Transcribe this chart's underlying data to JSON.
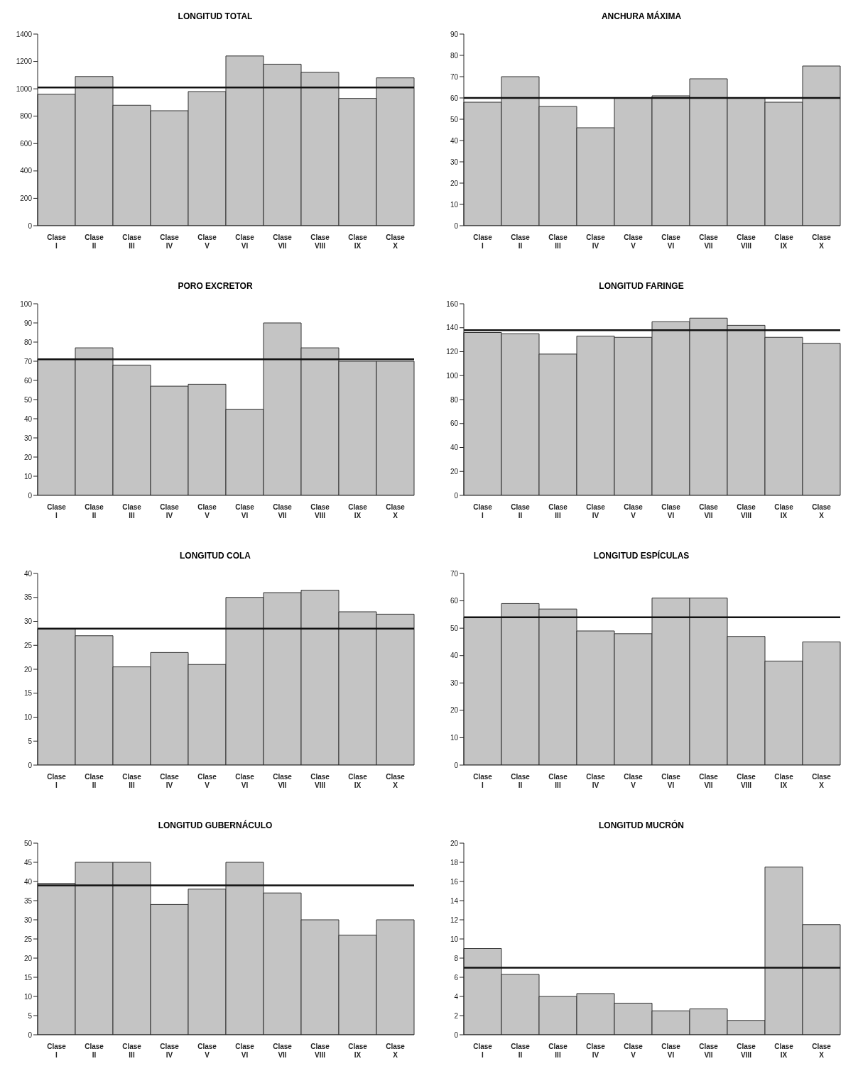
{
  "chart_data": [
    {
      "type": "bar",
      "title": "LONGITUD TOTAL",
      "categories": [
        "Clase I",
        "Clase II",
        "Clase III",
        "Clase IV",
        "Clase V",
        "Clase VI",
        "Clase VII",
        "Clase VIII",
        "Clase IX",
        "Clase X"
      ],
      "values": [
        960,
        1090,
        880,
        840,
        980,
        1240,
        1180,
        1120,
        930,
        1080
      ],
      "color": "#c4c4c4",
      "ylim": [
        0,
        1400
      ],
      "yticks": [
        0,
        200,
        400,
        600,
        800,
        1000,
        1200,
        1400
      ],
      "ref_lines": [
        {
          "axis": "y",
          "value": 1010,
          "label": null,
          "color": "#111111"
        }
      ]
    },
    {
      "type": "bar",
      "title": "ANCHURA MÁXIMA",
      "categories": [
        "Clase I",
        "Clase II",
        "Clase III",
        "Clase IV",
        "Clase V",
        "Clase VI",
        "Clase VII",
        "Clase VIII",
        "Clase IX",
        "Clase X"
      ],
      "values": [
        58,
        70,
        56,
        46,
        60,
        61,
        69,
        60,
        58,
        75
      ],
      "color": "#c4c4c4",
      "ylim": [
        0,
        90
      ],
      "yticks": [
        0,
        10,
        20,
        30,
        40,
        50,
        60,
        70,
        80,
        90
      ],
      "ref_lines": [
        {
          "axis": "y",
          "value": 60,
          "label": null,
          "color": "#111111"
        }
      ]
    },
    {
      "type": "bar",
      "title": "PORO EXCRETOR",
      "categories": [
        "Clase I",
        "Clase II",
        "Clase III",
        "Clase IV",
        "Clase V",
        "Clase VI",
        "Clase VII",
        "Clase VIII",
        "Clase IX",
        "Clase X"
      ],
      "values": [
        71,
        77,
        68,
        57,
        58,
        45,
        90,
        77,
        70,
        70
      ],
      "color": "#c4c4c4",
      "ylim": [
        0,
        100
      ],
      "yticks": [
        0,
        10,
        20,
        30,
        40,
        50,
        60,
        70,
        80,
        90,
        100
      ],
      "ref_lines": [
        {
          "axis": "y",
          "value": 71,
          "label": null,
          "color": "#111111"
        }
      ]
    },
    {
      "type": "bar",
      "title": "LONGITUD FARINGE",
      "categories": [
        "Clase I",
        "Clase II",
        "Clase III",
        "Clase IV",
        "Clase V",
        "Clase VI",
        "Clase VII",
        "Clase VIII",
        "Clase IX",
        "Clase X"
      ],
      "values": [
        136,
        135,
        118,
        133,
        132,
        145,
        148,
        142,
        132,
        127
      ],
      "color": "#c4c4c4",
      "ylim": [
        0,
        160
      ],
      "yticks": [
        0,
        20,
        40,
        60,
        80,
        100,
        120,
        140,
        160
      ],
      "ref_lines": [
        {
          "axis": "y",
          "value": 138,
          "label": null,
          "color": "#111111"
        }
      ]
    },
    {
      "type": "bar",
      "title": "LONGITUD COLA",
      "categories": [
        "Clase I",
        "Clase II",
        "Clase III",
        "Clase IV",
        "Clase V",
        "Clase VI",
        "Clase VII",
        "Clase VIII",
        "Clase IX",
        "Clase X"
      ],
      "values": [
        28.5,
        27,
        20.5,
        23.5,
        21,
        35,
        36,
        36.5,
        32,
        31.5
      ],
      "color": "#c4c4c4",
      "ylim": [
        0,
        40
      ],
      "yticks": [
        0,
        5,
        10,
        15,
        20,
        25,
        30,
        35,
        40
      ],
      "ref_lines": [
        {
          "axis": "y",
          "value": 28.5,
          "label": null,
          "color": "#111111"
        }
      ]
    },
    {
      "type": "bar",
      "title": "LONGITUD ESPÍCULAS",
      "categories": [
        "Clase I",
        "Clase II",
        "Clase III",
        "Clase IV",
        "Clase V",
        "Clase VI",
        "Clase VII",
        "Clase VIII",
        "Clase IX",
        "Clase X"
      ],
      "values": [
        54,
        59,
        57,
        49,
        48,
        61,
        61,
        47,
        38,
        45
      ],
      "color": "#c4c4c4",
      "ylim": [
        0,
        70
      ],
      "yticks": [
        0,
        10,
        20,
        30,
        40,
        50,
        60,
        70
      ],
      "ref_lines": [
        {
          "axis": "y",
          "value": 54,
          "label": null,
          "color": "#111111"
        }
      ]
    },
    {
      "type": "bar",
      "title": "LONGITUD GUBERNÁCULO",
      "categories": [
        "Clase I",
        "Clase II",
        "Clase III",
        "Clase IV",
        "Clase V",
        "Clase VI",
        "Clase VII",
        "Clase VIII",
        "Clase IX",
        "Clase X"
      ],
      "values": [
        39.5,
        45,
        45,
        34,
        38,
        45,
        37,
        30,
        26,
        30
      ],
      "color": "#c4c4c4",
      "ylim": [
        0,
        50
      ],
      "yticks": [
        0,
        5,
        10,
        15,
        20,
        25,
        30,
        35,
        40,
        45,
        50
      ],
      "ref_lines": [
        {
          "axis": "y",
          "value": 39,
          "label": null,
          "color": "#111111"
        }
      ]
    },
    {
      "type": "bar",
      "title": "LONGITUD MUCRÓN",
      "categories": [
        "Clase I",
        "Clase II",
        "Clase III",
        "Clase IV",
        "Clase V",
        "Clase VI",
        "Clase VII",
        "Clase VIII",
        "Clase IX",
        "Clase X"
      ],
      "values": [
        9,
        6.3,
        4,
        4.3,
        3.3,
        2.5,
        2.7,
        1.5,
        17.5,
        11.5
      ],
      "color": "#c4c4c4",
      "ylim": [
        0,
        20
      ],
      "yticks": [
        0,
        2,
        4,
        6,
        8,
        10,
        12,
        14,
        16,
        18,
        20
      ],
      "ref_lines": [
        {
          "axis": "y",
          "value": 7,
          "label": null,
          "color": "#111111"
        }
      ]
    }
  ]
}
